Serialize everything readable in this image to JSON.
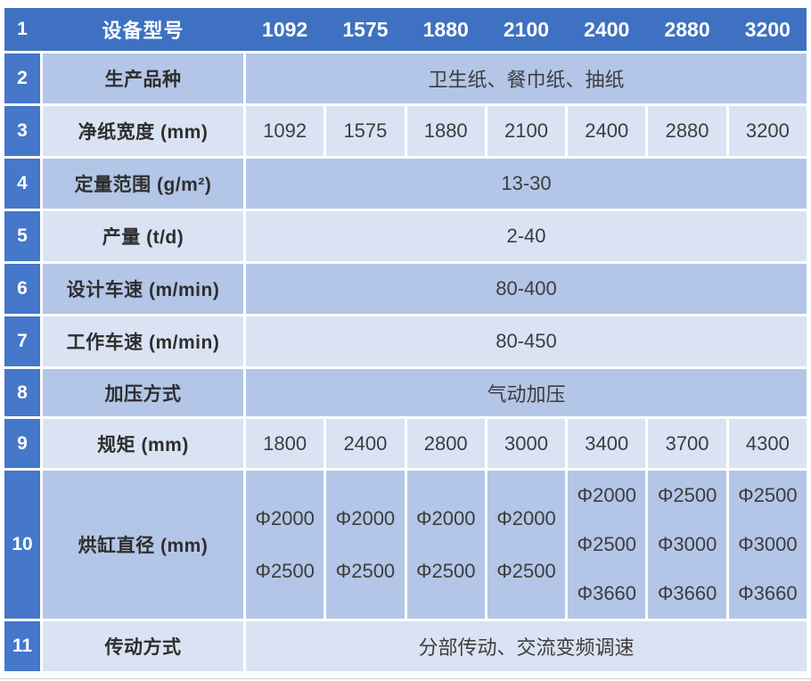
{
  "colors": {
    "header_blue": "#3E71C1",
    "row_number_blue": "#4577CA",
    "band_medium": "#B3C6E7",
    "band_light": "#DAE3F3",
    "header_text": "#FFFFFF",
    "body_text": "#3D3D3D"
  },
  "table": {
    "header": {
      "num": "1",
      "label": "设备型号",
      "models": [
        "1092",
        "1575",
        "1880",
        "2100",
        "2400",
        "2880",
        "3200"
      ]
    },
    "r2": {
      "num": "2",
      "label": "生产品种",
      "value": "卫生纸、餐巾纸、抽纸"
    },
    "r3": {
      "num": "3",
      "label": "净纸宽度 (mm)",
      "values": [
        "1092",
        "1575",
        "1880",
        "2100",
        "2400",
        "2880",
        "3200"
      ]
    },
    "r4": {
      "num": "4",
      "label": "定量范围 (g/m²)",
      "value": "13-30"
    },
    "r5": {
      "num": "5",
      "label": "产量 (t/d)",
      "value": "2-40"
    },
    "r6": {
      "num": "6",
      "label": "设计车速 (m/min)",
      "value": "80-400"
    },
    "r7": {
      "num": "7",
      "label": "工作车速 (m/min)",
      "value": "80-450"
    },
    "r8": {
      "num": "8",
      "label": "加压方式",
      "value": "气动加压"
    },
    "r9": {
      "num": "9",
      "label": "规矩 (mm)",
      "values": [
        "1800",
        "2400",
        "2800",
        "3000",
        "3400",
        "3700",
        "4300"
      ]
    },
    "r10": {
      "num": "10",
      "label": "烘缸直径 (mm)",
      "values": [
        [
          "Φ2000",
          "Φ2500"
        ],
        [
          "Φ2000",
          "Φ2500"
        ],
        [
          "Φ2000",
          "Φ2500"
        ],
        [
          "Φ2000",
          "Φ2500"
        ],
        [
          "Φ2000",
          "Φ2500",
          "Φ3660"
        ],
        [
          "Φ2500",
          "Φ3000",
          "Φ3660"
        ],
        [
          "Φ2500",
          "Φ3000",
          "Φ3660"
        ]
      ]
    },
    "r11": {
      "num": "11",
      "label": "传动方式",
      "value": "分部传动、交流变频调速"
    }
  }
}
